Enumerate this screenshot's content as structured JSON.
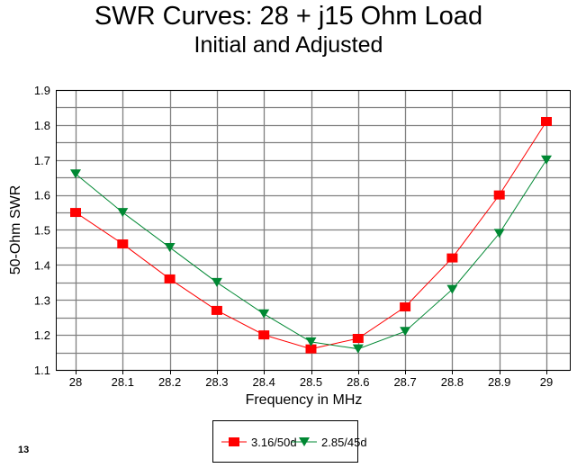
{
  "chart_data": {
    "type": "line",
    "title": "SWR Curves:  28 + j15 Ohm Load",
    "subtitle": "Initial and Adjusted",
    "xlabel": "Frequency in MHz",
    "ylabel": "50-Ohm SWR",
    "x": [
      28,
      28.1,
      28.2,
      28.3,
      28.4,
      28.5,
      28.6,
      28.7,
      28.8,
      28.9,
      29
    ],
    "x_tick_labels": [
      "28",
      "28.1",
      "28.2",
      "28.3",
      "28.4",
      "28.5",
      "28.6",
      "28.7",
      "28.8",
      "28.9",
      "29"
    ],
    "y_tick_labels": [
      "1.1",
      "1.2",
      "1.3",
      "1.4",
      "1.5",
      "1.6",
      "1.7",
      "1.8",
      "1.9"
    ],
    "ylim": [
      1.1,
      1.9
    ],
    "grid": true,
    "legend_position": "bottom-center",
    "series": [
      {
        "name": "3.16/50d",
        "color": "#ff0000",
        "marker": "square",
        "values": [
          1.55,
          1.46,
          1.36,
          1.27,
          1.2,
          1.16,
          1.19,
          1.28,
          1.42,
          1.6,
          1.81
        ]
      },
      {
        "name": "2.85/45d",
        "color": "#008833",
        "marker": "triangle-down",
        "values": [
          1.66,
          1.55,
          1.45,
          1.35,
          1.26,
          1.18,
          1.16,
          1.21,
          1.33,
          1.49,
          1.7
        ]
      }
    ]
  },
  "page_note": "13"
}
